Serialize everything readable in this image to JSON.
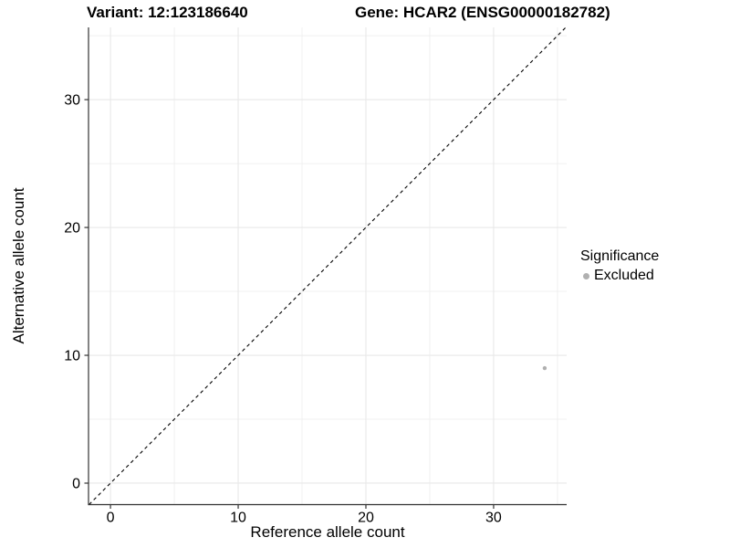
{
  "header": {
    "title_left": "Variant: 12:123186640",
    "title_right": "Gene: HCAR2 (ENSG00000182782)"
  },
  "chart_data": {
    "type": "scatter",
    "title": "Variant: 12:123186640   Gene: HCAR2 (ENSG00000182782)",
    "xlabel": "Reference allele count",
    "ylabel": "Alternative allele count",
    "xlim": [
      -1.72,
      35.72
    ],
    "ylim": [
      -1.68,
      35.65
    ],
    "x_major_ticks": [
      0,
      10,
      20,
      30
    ],
    "y_major_ticks": [
      0,
      10,
      20,
      30
    ],
    "x_minor_ticks": [
      5,
      15,
      25,
      35
    ],
    "y_minor_ticks": [
      5,
      15,
      25,
      35
    ],
    "grid": true,
    "legend_position": "right",
    "reference_line": {
      "slope": 1,
      "intercept": 0,
      "style": "dashed",
      "color": "#000000"
    },
    "series": [
      {
        "name": "Excluded",
        "color": "#b0b0b0",
        "points": [
          {
            "x": 34,
            "y": 9
          }
        ]
      }
    ],
    "legend": {
      "title": "Significance",
      "items": [
        {
          "label": "Excluded",
          "color": "#b0b0b0"
        }
      ]
    },
    "colors": {
      "axis_line": "#333333",
      "grid_major": "#e8e8e8",
      "grid_minor": "#f0f0f0",
      "tick_label": "#000000"
    }
  }
}
